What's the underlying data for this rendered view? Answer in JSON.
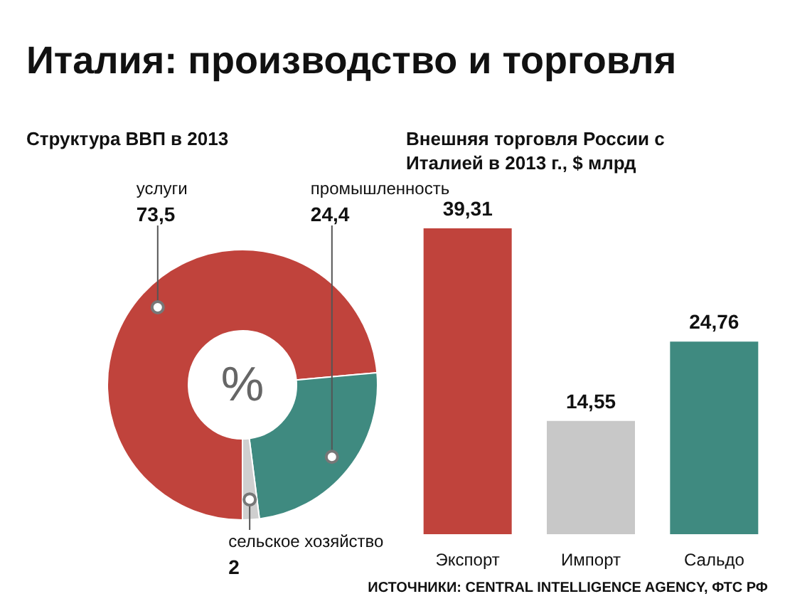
{
  "chart_data": [
    {
      "type": "donut",
      "title": "Италия: производство и торговля",
      "subtitle": "Структура ВВП в 2013",
      "categories": [
        "услуги",
        "промышленность",
        "сельское хозяйство"
      ],
      "values": [
        73.5,
        24.4,
        2
      ],
      "value_labels": [
        "73,5",
        "24,4",
        "2"
      ],
      "colors": [
        "#c0433c",
        "#3f8a80",
        "#cfcfcf"
      ],
      "annotations": [
        "%"
      ]
    },
    {
      "type": "bar",
      "title": "Внешняя торговля России с Италией в 2013 г., $ млрд",
      "categories": [
        "Экспорт",
        "Импорт",
        "Сальдо"
      ],
      "values": [
        39.31,
        14.55,
        24.76
      ],
      "value_labels": [
        "39,31",
        "14,55",
        "24,76"
      ],
      "colors": [
        "#c0433c",
        "#c8c8c8",
        "#3f8a80"
      ],
      "annotations": [
        "ИСТОЧНИКИ: CENTRAL INTELLIGENCE AGENCY, ФТС РФ"
      ]
    }
  ]
}
